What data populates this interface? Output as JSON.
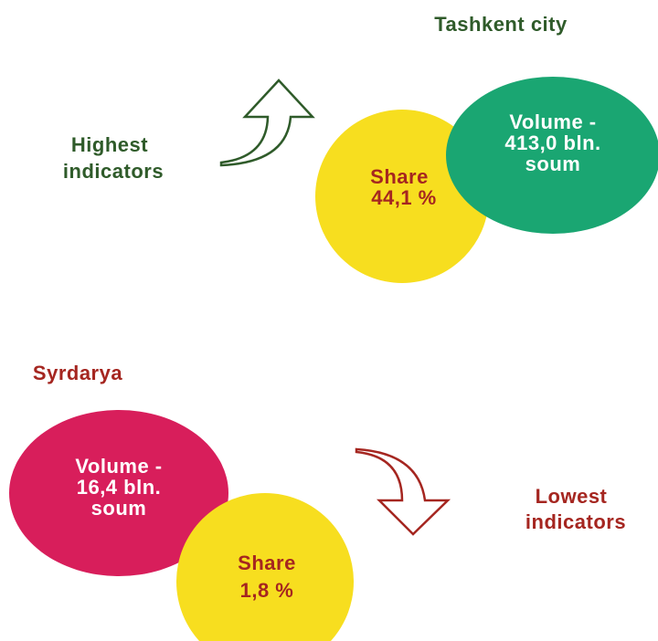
{
  "top": {
    "region": "Tashkent city",
    "label": [
      "Highest",
      "indicators"
    ],
    "volume": [
      "Volume -",
      "413,0 bln.",
      "soum"
    ],
    "share": [
      "Share",
      "44,1 %"
    ]
  },
  "bottom": {
    "region": "Syrdarya",
    "label": [
      "Lowest",
      "indicators"
    ],
    "volume": [
      "Volume -",
      "16,4 bln.",
      "soum"
    ],
    "share": [
      "Share",
      "1,8 %"
    ]
  }
}
